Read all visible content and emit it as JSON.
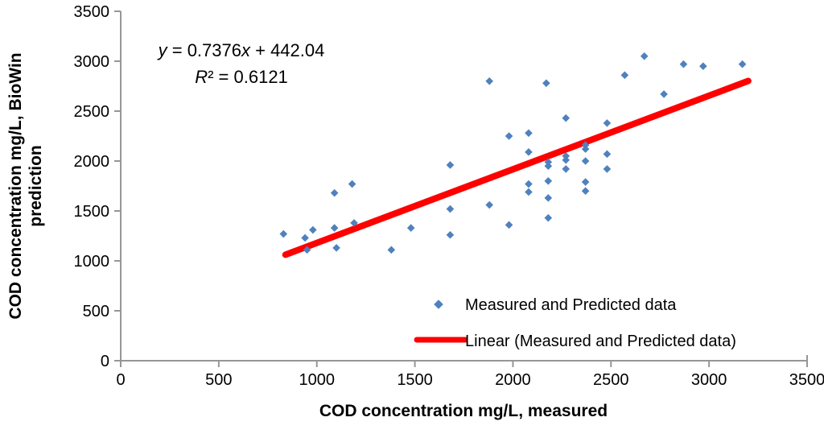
{
  "figure": {
    "background": "#ffffff",
    "axis_color": "#969696",
    "text_color": "#000000"
  },
  "chart_data": {
    "type": "scatter",
    "title": "",
    "xlabel": "COD concentration mg/L, measured",
    "ylabel_line1": "COD concentration mg/L, BioWin",
    "ylabel_line2": "prediction",
    "xlim": [
      0,
      3500
    ],
    "ylim": [
      0,
      3500
    ],
    "xticks": [
      0,
      500,
      1000,
      1500,
      2000,
      2500,
      3000,
      3500
    ],
    "yticks": [
      0,
      500,
      1000,
      1500,
      2000,
      2500,
      3000,
      3500
    ],
    "grid": false,
    "legend_position": "inside-bottom-right",
    "series": [
      {
        "name": "Measured and Predicted data",
        "marker": "diamond",
        "color": "#4F81BD",
        "points": [
          [
            830,
            1270
          ],
          [
            940,
            1230
          ],
          [
            950,
            1110
          ],
          [
            980,
            1310
          ],
          [
            1090,
            1680
          ],
          [
            1090,
            1330
          ],
          [
            1100,
            1130
          ],
          [
            1180,
            1770
          ],
          [
            1190,
            1380
          ],
          [
            1380,
            1110
          ],
          [
            1480,
            1330
          ],
          [
            1680,
            1960
          ],
          [
            1680,
            1520
          ],
          [
            1680,
            1260
          ],
          [
            1880,
            2800
          ],
          [
            1880,
            1560
          ],
          [
            1980,
            2250
          ],
          [
            1980,
            1360
          ],
          [
            2080,
            2280
          ],
          [
            2080,
            2090
          ],
          [
            2080,
            1770
          ],
          [
            2080,
            1690
          ],
          [
            2170,
            2780
          ],
          [
            2180,
            1990
          ],
          [
            2180,
            1950
          ],
          [
            2180,
            1800
          ],
          [
            2180,
            1630
          ],
          [
            2180,
            1430
          ],
          [
            2270,
            2430
          ],
          [
            2270,
            2050
          ],
          [
            2270,
            2010
          ],
          [
            2270,
            1920
          ],
          [
            2370,
            2160
          ],
          [
            2370,
            2120
          ],
          [
            2370,
            2000
          ],
          [
            2370,
            1790
          ],
          [
            2370,
            1700
          ],
          [
            2480,
            2380
          ],
          [
            2480,
            2070
          ],
          [
            2480,
            1920
          ],
          [
            2570,
            2860
          ],
          [
            2670,
            3050
          ],
          [
            2770,
            2670
          ],
          [
            2870,
            2970
          ],
          [
            2970,
            2950
          ],
          [
            3170,
            2970
          ]
        ]
      }
    ],
    "trendline": {
      "name": "Linear (Measured and Predicted data)",
      "color": "#FF0000",
      "slope": 0.7376,
      "intercept": 442.04,
      "x_start": 840,
      "x_end": 3200
    },
    "annotation": {
      "y_var": "y",
      "eq_mid": " = 0.7376",
      "x_var": "x",
      "eq_tail": " + 442.04",
      "r_var": "R",
      "r_sup": "²",
      "r_tail": " = 0.6121"
    }
  }
}
